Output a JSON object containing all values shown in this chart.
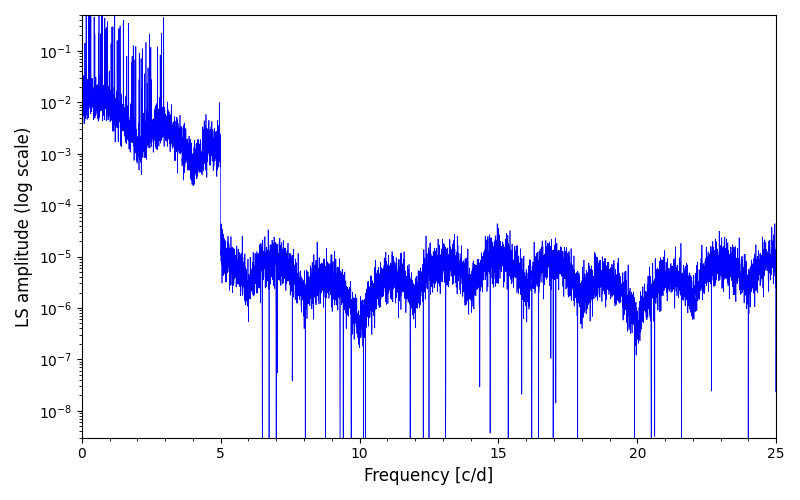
{
  "xlabel": "Frequency [c/d]",
  "ylabel": "LS amplitude (log scale)",
  "xlim": [
    0,
    25
  ],
  "ylim": [
    3e-09,
    0.5
  ],
  "line_color": "#0000ff",
  "line_width": 0.5,
  "background_color": "#ffffff",
  "freq_max": 25.0,
  "n_points": 8000,
  "seed": 7
}
